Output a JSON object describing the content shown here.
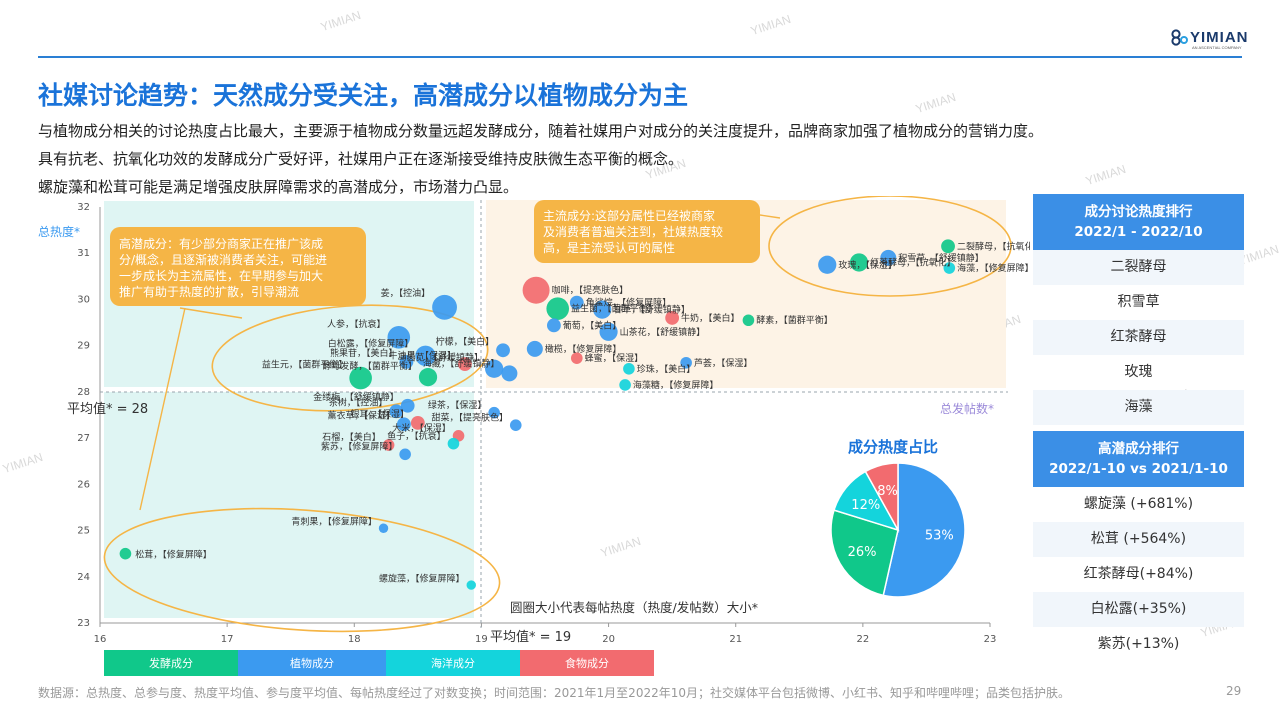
{
  "brand": {
    "name": "YIMIAN",
    "sub": "AN ASCENTIAL COMPANY",
    "watermark": "YIMIAN"
  },
  "title": "社媒讨论趋势：天然成分受关注，高潜成分以植物成分为主",
  "description": [
    "与植物成分相关的讨论热度占比最大，主要源于植物成分数量远超发酵成分，随着社媒用户对成分的关注度提升，品牌商家加强了植物成分的营销力度。",
    "具有抗老、抗氧化功效的发酵成分广受好评，社媒用户正在逐渐接受维持皮肤微生态平衡的概念。",
    "螺旋藻和松茸可能是满足增强皮肤屏障需求的高潜成分，市场潜力凸显。"
  ],
  "colors": {
    "fermented": "#10c88a",
    "plant": "#3b9af0",
    "marine": "#14d4dc",
    "food": "#f26b6f",
    "accent": "#1a73d9",
    "callout": "#f5b546"
  },
  "callouts": {
    "high_potential": [
      "高潜成分：有少部分商家正在推广该成",
      "分/概念，且逐渐被消费者关注，可能进",
      "一步成长为主流属性，在早期参与加大",
      "推广有助于热度的扩散，引导潮流"
    ],
    "mainstream": [
      "主流成分:这部分属性已经被商家",
      "及消费者普遍关注到，社媒热度较",
      "高，是主流受认可的属性"
    ]
  },
  "chart_data": [
    {
      "type": "scatter",
      "title": "",
      "xlabel": "总发帖数*",
      "ylabel": "总热度*",
      "xlim": [
        16,
        23
      ],
      "ylim": [
        23,
        32
      ],
      "x_ticks": [
        "16",
        "17",
        "18",
        "19",
        "20",
        "21",
        "22",
        "23"
      ],
      "y_ticks": [
        "23",
        "24",
        "25",
        "26",
        "27",
        "28",
        "29",
        "30",
        "31",
        "32"
      ],
      "x_avg": 19,
      "y_avg": 28,
      "x_avg_label": "平均值* = 19",
      "y_avg_label": "平均值* = 28",
      "size_note": "圆圈大小代表每帖热度（热度/发帖数）大小*",
      "legend_position": "bottom",
      "legend": [
        {
          "name": "发酵成分",
          "color": "#10c88a"
        },
        {
          "name": "植物成分",
          "color": "#3b9af0"
        },
        {
          "name": "海洋成分",
          "color": "#14d4dc"
        },
        {
          "name": "食物成分",
          "color": "#f26b6f"
        }
      ],
      "points": [
        {
          "label": "二裂酵母，【抗氧化】",
          "x": 22.67,
          "y": 31.15,
          "size": 2,
          "cat": "fermented"
        },
        {
          "label": "红茶酵母，【抗氧化】",
          "x": 21.97,
          "y": 30.8,
          "size": 3,
          "cat": "fermented"
        },
        {
          "label": "积雪草，【舒缓镇静】",
          "x": 22.2,
          "y": 30.9,
          "size": 2.5,
          "cat": "plant"
        },
        {
          "label": "玫瑰，【保湿】",
          "x": 21.72,
          "y": 30.75,
          "size": 3,
          "cat": "plant"
        },
        {
          "label": "海藻，【修复屏障】",
          "x": 22.68,
          "y": 30.68,
          "size": 1.5,
          "cat": "marine"
        },
        {
          "label": "咖啡，【提亮肤色】",
          "x": 19.43,
          "y": 30.2,
          "size": 5,
          "cat": "food"
        },
        {
          "label": "角鲨烷，【修复屏障】",
          "x": 19.75,
          "y": 29.93,
          "size": 2,
          "cat": "plant"
        },
        {
          "label": "姜，【控油】",
          "x": 18.71,
          "y": 29.83,
          "size": 4.5,
          "cat": "plant"
        },
        {
          "label": "益生菌，【菌群平衡】",
          "x": 19.6,
          "y": 29.8,
          "size": 4,
          "cat": "fermented"
        },
        {
          "label": "甘草，【舒缓镇静】",
          "x": 19.95,
          "y": 29.78,
          "size": 3,
          "cat": "plant"
        },
        {
          "label": "牛奶，【美白】",
          "x": 20.5,
          "y": 29.6,
          "size": 2,
          "cat": "food"
        },
        {
          "label": "酵素，【菌群平衡】",
          "x": 21.1,
          "y": 29.55,
          "size": 1.5,
          "cat": "fermented"
        },
        {
          "label": "葡萄，【美白】",
          "x": 19.57,
          "y": 29.44,
          "size": 2,
          "cat": "plant"
        },
        {
          "label": "山茶花，【舒缓镇静】",
          "x": 20.0,
          "y": 29.3,
          "size": 3,
          "cat": "plant"
        },
        {
          "label": "人参，【抗衰】",
          "x": 18.35,
          "y": 29.18,
          "size": 4,
          "cat": "plant"
        },
        {
          "label": "柠檬，【美白】",
          "x": 19.17,
          "y": 28.9,
          "size": 2,
          "cat": "plant"
        },
        {
          "label": "橄榄，【修复屏障】",
          "x": 19.42,
          "y": 28.93,
          "size": 2.5,
          "cat": "plant"
        },
        {
          "label": "白松露，【修复屏障】",
          "x": 18.56,
          "y": 28.78,
          "size": 3.5,
          "cat": "plant"
        },
        {
          "label": "蜂蜜，【保湿】",
          "x": 19.75,
          "y": 28.73,
          "size": 1.5,
          "cat": "food"
        },
        {
          "label": "熊果苷，【美白】",
          "x": 18.41,
          "y": 28.65,
          "size": 2,
          "cat": "plant"
        },
        {
          "label": "牛油果，【保湿】",
          "x": 18.87,
          "y": 28.6,
          "size": 2,
          "cat": "food"
        },
        {
          "label": "珍珠，【美白】",
          "x": 20.16,
          "y": 28.5,
          "size": 1.5,
          "cat": "marine"
        },
        {
          "label": "芦荟，【保湿】",
          "x": 20.61,
          "y": 28.63,
          "size": 1.5,
          "cat": "plant"
        },
        {
          "label": "益生元，【菌群平衡】",
          "x": 18.05,
          "y": 28.3,
          "size": 4,
          "cat": "fermented"
        },
        {
          "label": "酵母发酵，【菌群平衡】",
          "x": 18.58,
          "y": 28.32,
          "size": 3,
          "cat": "fermented"
        },
        {
          "label": "马齿苋，【舒缓镇静】",
          "x": 19.1,
          "y": 28.5,
          "size": 3,
          "cat": "plant"
        },
        {
          "label": "海藏，【舒缓镇静】",
          "x": 19.22,
          "y": 28.4,
          "size": 2.5,
          "cat": "plant"
        },
        {
          "label": "海藻糖，【修复屏障】",
          "x": 20.13,
          "y": 28.15,
          "size": 1.5,
          "cat": "marine"
        },
        {
          "label": "金缕梅，【舒缓镇静】",
          "x": 18.42,
          "y": 27.7,
          "size": 2,
          "cat": "plant"
        },
        {
          "label": "茶树，【控油】",
          "x": 18.33,
          "y": 27.58,
          "size": 2,
          "cat": "plant"
        },
        {
          "label": "绿茶，【保湿】",
          "x": 19.1,
          "y": 27.55,
          "size": 1.5,
          "cat": "plant"
        },
        {
          "label": "银耳，【保湿】",
          "x": 18.5,
          "y": 27.33,
          "size": 2,
          "cat": "food"
        },
        {
          "label": "薰衣草，【保湿】",
          "x": 18.39,
          "y": 27.3,
          "size": 2,
          "cat": "plant"
        },
        {
          "label": "甜菜，【提亮肤色】",
          "x": 19.27,
          "y": 27.28,
          "size": 1.5,
          "cat": "plant"
        },
        {
          "label": "大米，【保湿】",
          "x": 18.82,
          "y": 27.05,
          "size": 1.5,
          "cat": "food"
        },
        {
          "label": "石榴，【美白】",
          "x": 18.27,
          "y": 26.85,
          "size": 1.5,
          "cat": "food"
        },
        {
          "label": "鱼子，【抗衰】",
          "x": 18.78,
          "y": 26.88,
          "size": 1.5,
          "cat": "marine"
        },
        {
          "label": "紫苏，【修复屏障】",
          "x": 18.4,
          "y": 26.65,
          "size": 1.5,
          "cat": "plant"
        },
        {
          "label": "青刺果，【修复屏障】",
          "x": 18.23,
          "y": 25.05,
          "size": 1,
          "cat": "plant"
        },
        {
          "label": "松茸，【修复屏障】",
          "x": 16.2,
          "y": 24.5,
          "size": 1.5,
          "cat": "fermented"
        },
        {
          "label": "螺旋藻，【修复屏障】",
          "x": 18.92,
          "y": 23.82,
          "size": 1,
          "cat": "marine"
        }
      ]
    },
    {
      "type": "pie",
      "title": "成分热度占比",
      "categories": [
        "植物成分",
        "发酵成分",
        "海洋成分",
        "食物成分"
      ],
      "values": [
        53,
        26,
        12,
        8
      ],
      "labels": [
        "53%",
        "26%",
        "12%",
        "8%"
      ],
      "colors": [
        "#3b9af0",
        "#10c88a",
        "#14d4dc",
        "#f26b6f"
      ]
    }
  ],
  "ranking_heat": {
    "title_line1": "成分讨论热度排行",
    "title_line2": "2022/1 - 2022/10",
    "items": [
      "二裂酵母",
      "积雪草",
      "红茶酵母",
      "玫瑰",
      "海藻"
    ]
  },
  "ranking_potential": {
    "title_line1": "高潜成分排行",
    "title_line2": "2022/1-10 vs 2021/1-10",
    "items": [
      "螺旋藻 (+681%)",
      "松茸 (+564%)",
      "红茶酵母(+84%)",
      "白松露(+35%)",
      "紫苏(+13%)"
    ]
  },
  "footer": "数据源：总热度、总参与度、热度平均值、参与度平均值、每帖热度经过了对数变换；时间范围：2021年1月至2022年10月；社交媒体平台包括微博、小红书、知乎和哔哩哔哩；品类包括护肤。",
  "page_number": "29"
}
